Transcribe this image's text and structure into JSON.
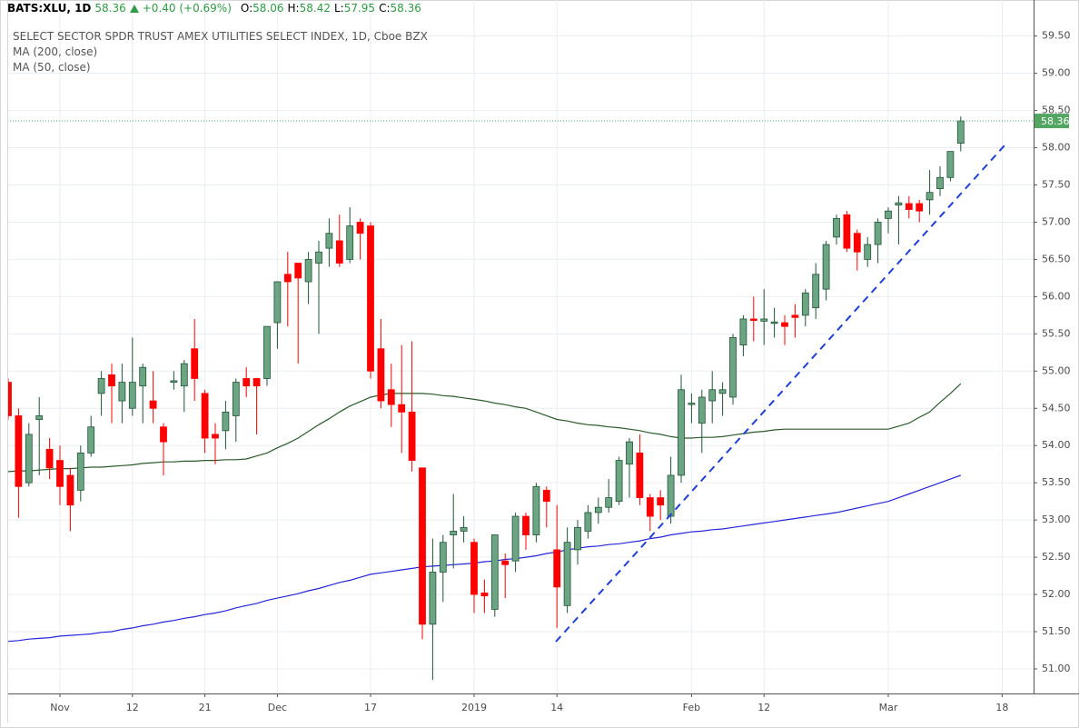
{
  "header": {
    "symbol": "BATS:XLU, 1D",
    "last": "58.36",
    "change": "+0.40 (+0.69%)",
    "ohlc": [
      {
        "label": "O:",
        "value": "58.06"
      },
      {
        "label": "H:",
        "value": "58.42"
      },
      {
        "label": "L:",
        "value": "57.95"
      },
      {
        "label": "C:",
        "value": "58.36"
      }
    ]
  },
  "chart_data": {
    "type": "candlestick",
    "title": "SELECT SECTOR SPDR TRUST AMEX UTILITIES SELECT INDEX, 1D, Cboe BZX",
    "categories": [
      null,
      null,
      null,
      null,
      null,
      "Nov",
      null,
      null,
      null,
      null,
      null,
      null,
      "12",
      null,
      null,
      null,
      null,
      null,
      null,
      "21",
      null,
      null,
      null,
      null,
      null,
      null,
      "Dec",
      null,
      null,
      null,
      null,
      null,
      null,
      null,
      null,
      "17",
      null,
      null,
      null,
      null,
      null,
      null,
      null,
      null,
      null,
      "2019",
      null,
      null,
      null,
      null,
      null,
      null,
      null,
      "14",
      null,
      null,
      null,
      null,
      null,
      null,
      null,
      null,
      null,
      null,
      null,
      null,
      "Feb",
      null,
      null,
      null,
      null,
      null,
      null,
      "12",
      null,
      null,
      null,
      null,
      null,
      null,
      null,
      null,
      null,
      null,
      null,
      "Mar",
      null,
      null,
      null,
      null,
      null,
      null,
      null,
      null,
      null,
      null,
      "18",
      null,
      null,
      null
    ],
    "open": [
      54.85,
      54.4,
      53.5,
      54.35,
      53.95,
      53.8,
      53.6,
      53.4,
      53.9,
      54.7,
      54.95,
      54.6,
      54.5,
      54.8,
      54.6,
      54.25,
      54.85,
      54.8,
      55.3,
      54.7,
      54.15,
      54.2,
      54.4,
      54.9,
      54.9,
      54.9,
      55.65,
      56.3,
      56.45,
      56.2,
      56.45,
      56.65,
      56.75,
      56.5,
      57.0,
      56.95,
      55.3,
      54.75,
      54.55,
      54.45,
      53.7,
      51.6,
      52.3,
      52.8,
      52.85,
      52.7,
      52.02,
      51.8,
      52.45,
      52.45,
      53.05,
      52.8,
      53.4,
      52.6,
      51.85,
      52.6,
      52.85,
      53.1,
      53.17,
      53.25,
      53.75,
      53.9,
      53.3,
      53.3,
      53.05,
      53.6,
      54.55,
      54.3,
      54.6,
      54.7,
      54.65,
      55.35,
      55.7,
      55.67,
      55.64,
      55.65,
      55.75,
      55.75,
      55.85,
      56.1,
      56.8,
      57.1,
      56.85,
      56.5,
      56.7,
      57.05,
      57.23,
      57.25,
      57.25,
      57.3,
      57.45,
      57.6,
      58.06,
      null,
      null,
      null,
      null,
      null,
      null,
      null
    ],
    "high": [
      54.9,
      54.5,
      54.3,
      54.65,
      54.1,
      54.0,
      53.7,
      54.0,
      54.4,
      55.0,
      55.1,
      55.1,
      55.45,
      55.1,
      55.0,
      54.3,
      55.0,
      55.15,
      55.7,
      54.75,
      54.3,
      54.6,
      54.9,
      55.05,
      54.9,
      55.6,
      56.2,
      56.6,
      56.45,
      56.6,
      56.75,
      57.05,
      57.1,
      57.2,
      57.05,
      57.0,
      55.7,
      55.1,
      55.35,
      55.4,
      53.7,
      52.75,
      52.8,
      53.35,
      53.05,
      52.75,
      52.2,
      52.8,
      52.55,
      53.1,
      53.1,
      53.5,
      53.45,
      53.2,
      52.9,
      53.0,
      53.2,
      53.3,
      53.55,
      53.85,
      54.1,
      54.15,
      53.35,
      53.4,
      53.85,
      54.95,
      54.7,
      54.75,
      55.0,
      54.85,
      55.5,
      55.75,
      56.0,
      56.1,
      55.85,
      55.75,
      55.9,
      56.1,
      56.45,
      56.75,
      57.1,
      57.15,
      56.9,
      56.8,
      57.05,
      57.2,
      57.35,
      57.35,
      57.3,
      57.7,
      57.75,
      57.95,
      58.42,
      null,
      null,
      null,
      null,
      null,
      null,
      null
    ],
    "low": [
      54.35,
      53.03,
      53.45,
      53.6,
      53.55,
      53.2,
      52.85,
      53.25,
      53.85,
      54.4,
      54.3,
      54.3,
      54.4,
      54.3,
      54.3,
      53.6,
      54.75,
      54.45,
      54.6,
      53.9,
      53.75,
      53.95,
      54.05,
      54.65,
      54.15,
      54.8,
      55.3,
      55.6,
      55.1,
      55.9,
      55.5,
      56.4,
      56.4,
      56.45,
      56.5,
      54.9,
      54.5,
      54.25,
      53.9,
      53.65,
      51.4,
      50.85,
      51.9,
      52.35,
      52.7,
      51.75,
      51.75,
      51.7,
      51.95,
      52.3,
      52.6,
      52.7,
      52.9,
      51.55,
      51.75,
      52.4,
      52.75,
      52.95,
      53.1,
      53.2,
      53.3,
      53.2,
      52.85,
      53.0,
      52.95,
      53.5,
      54.3,
      53.9,
      54.3,
      54.4,
      54.55,
      55.2,
      55.4,
      55.35,
      55.45,
      55.35,
      55.45,
      55.6,
      55.7,
      55.95,
      56.7,
      56.6,
      56.35,
      56.4,
      56.45,
      56.85,
      56.7,
      57.05,
      57.0,
      57.1,
      57.35,
      57.55,
      57.95,
      null,
      null,
      null,
      null,
      null,
      null,
      null
    ],
    "close": [
      54.4,
      53.45,
      54.15,
      54.4,
      53.7,
      53.45,
      53.2,
      53.9,
      54.25,
      54.9,
      54.8,
      54.85,
      54.85,
      55.05,
      54.5,
      54.05,
      54.87,
      55.1,
      54.9,
      54.1,
      54.1,
      54.45,
      54.85,
      54.8,
      54.8,
      55.6,
      56.2,
      56.2,
      56.25,
      56.5,
      56.6,
      56.85,
      56.45,
      56.95,
      56.85,
      55.0,
      54.6,
      54.55,
      54.45,
      53.8,
      51.6,
      52.3,
      52.7,
      52.85,
      52.9,
      52.0,
      51.98,
      52.8,
      52.4,
      53.05,
      52.8,
      53.45,
      53.25,
      52.1,
      52.7,
      52.9,
      53.1,
      53.17,
      53.3,
      53.8,
      54.05,
      53.3,
      53.05,
      53.2,
      53.6,
      54.75,
      54.57,
      54.65,
      54.75,
      54.75,
      55.45,
      55.7,
      55.68,
      55.7,
      55.66,
      55.6,
      55.72,
      56.05,
      56.3,
      56.7,
      57.05,
      56.65,
      56.6,
      56.7,
      57.0,
      57.15,
      57.26,
      57.17,
      57.15,
      57.4,
      57.6,
      57.95,
      58.36,
      null,
      null,
      null,
      null,
      null,
      null,
      null
    ],
    "up_color": "#6ba583",
    "up_border": "#225437",
    "down_color": "#ff0000",
    "series": [
      {
        "name": "MA (200, close)",
        "color": "#2626d9",
        "values": [
          51.37,
          51.38,
          51.4,
          51.41,
          51.42,
          51.44,
          51.45,
          51.46,
          51.47,
          51.49,
          51.5,
          51.53,
          51.55,
          51.58,
          51.6,
          51.63,
          51.65,
          51.68,
          51.7,
          51.73,
          51.75,
          51.78,
          51.82,
          51.85,
          51.88,
          51.92,
          51.95,
          51.98,
          52.01,
          52.05,
          52.08,
          52.12,
          52.16,
          52.19,
          52.23,
          52.27,
          52.29,
          52.31,
          52.33,
          52.35,
          52.37,
          52.38,
          52.39,
          52.4,
          52.41,
          52.42,
          52.44,
          52.45,
          52.47,
          52.48,
          52.5,
          52.52,
          52.55,
          52.57,
          52.6,
          52.62,
          52.64,
          52.65,
          52.67,
          52.68,
          52.7,
          52.72,
          52.75,
          52.77,
          52.8,
          52.82,
          52.84,
          52.85,
          52.87,
          52.88,
          52.9,
          52.92,
          52.94,
          52.96,
          52.98,
          53.0,
          53.02,
          53.04,
          53.06,
          53.08,
          53.1,
          53.13,
          53.16,
          53.19,
          53.22,
          53.25,
          53.3,
          53.35,
          53.4,
          53.45,
          53.5,
          53.55,
          53.6,
          null,
          null,
          null,
          null,
          null,
          null,
          null
        ]
      },
      {
        "name": "MA (50, close)",
        "color": "#2b5b2b",
        "values": [
          53.65,
          53.66,
          53.66,
          53.67,
          53.68,
          53.69,
          53.69,
          53.7,
          53.71,
          53.71,
          53.72,
          53.73,
          53.74,
          53.76,
          53.77,
          53.78,
          53.78,
          53.79,
          53.79,
          53.8,
          53.8,
          53.81,
          53.81,
          53.82,
          53.86,
          53.9,
          53.97,
          54.03,
          54.1,
          54.19,
          54.28,
          54.36,
          54.45,
          54.53,
          54.59,
          54.65,
          54.68,
          54.7,
          54.7,
          54.7,
          54.7,
          54.69,
          54.67,
          54.66,
          54.64,
          54.62,
          54.6,
          54.57,
          54.55,
          54.52,
          54.5,
          54.45,
          54.4,
          54.35,
          54.33,
          54.3,
          54.28,
          54.27,
          54.25,
          54.24,
          54.22,
          54.2,
          54.17,
          54.15,
          54.12,
          54.1,
          54.1,
          54.11,
          54.11,
          54.12,
          54.14,
          54.16,
          54.18,
          54.19,
          54.21,
          54.22,
          54.22,
          54.22,
          54.22,
          54.22,
          54.22,
          54.22,
          54.22,
          54.22,
          54.22,
          54.22,
          54.26,
          54.3,
          54.38,
          54.45,
          54.58,
          54.7,
          54.83,
          null,
          null,
          null,
          null,
          null,
          null,
          null
        ]
      }
    ],
    "ylim": [
      50.67,
      59.74
    ],
    "yticks": [
      {
        "value": 51,
        "label": "51.00"
      },
      {
        "value": 51.5,
        "label": "51.50"
      },
      {
        "value": 52,
        "label": "52.00"
      },
      {
        "value": 52.5,
        "label": "52.50"
      },
      {
        "value": 53,
        "label": "53.00"
      },
      {
        "value": 53.5,
        "label": "53.50"
      },
      {
        "value": 54,
        "label": "54.00"
      },
      {
        "value": 54.5,
        "label": "54.50"
      },
      {
        "value": 55,
        "label": "55.00"
      },
      {
        "value": 55.5,
        "label": "55.50"
      },
      {
        "value": 56,
        "label": "56.00"
      },
      {
        "value": 56.5,
        "label": "56.50"
      },
      {
        "value": 57,
        "label": "57.00"
      },
      {
        "value": 57.5,
        "label": "57.50"
      },
      {
        "value": 58,
        "label": "58.00"
      },
      {
        "value": 58.5,
        "label": "58.50"
      },
      {
        "value": 59,
        "label": "59.00"
      },
      {
        "value": 59.5,
        "label": "59.50"
      }
    ],
    "grid": true,
    "last_price_color": "#53a662"
  }
}
